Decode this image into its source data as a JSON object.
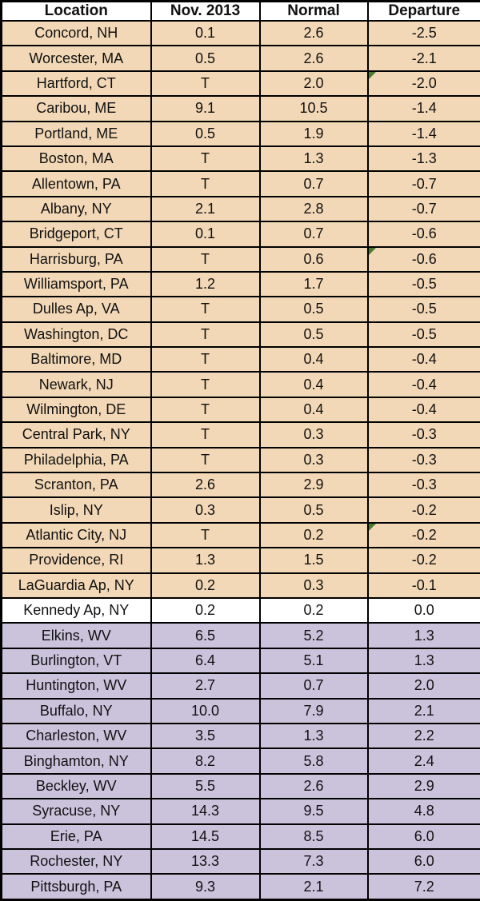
{
  "chart_data": {
    "type": "table",
    "columns": [
      "Location",
      "Nov. 2013",
      "Normal",
      "Departure"
    ],
    "rows": [
      {
        "location": "Concord, NH",
        "nov_2013": "0.1",
        "normal": "2.6",
        "departure": "-2.5",
        "category": "below_normal",
        "note_flag": false
      },
      {
        "location": "Worcester, MA",
        "nov_2013": "0.5",
        "normal": "2.6",
        "departure": "-2.1",
        "category": "below_normal",
        "note_flag": false
      },
      {
        "location": "Hartford, CT",
        "nov_2013": "T",
        "normal": "2.0",
        "departure": "-2.0",
        "category": "below_normal",
        "note_flag": true
      },
      {
        "location": "Caribou, ME",
        "nov_2013": "9.1",
        "normal": "10.5",
        "departure": "-1.4",
        "category": "below_normal",
        "note_flag": false
      },
      {
        "location": "Portland, ME",
        "nov_2013": "0.5",
        "normal": "1.9",
        "departure": "-1.4",
        "category": "below_normal",
        "note_flag": false
      },
      {
        "location": "Boston, MA",
        "nov_2013": "T",
        "normal": "1.3",
        "departure": "-1.3",
        "category": "below_normal",
        "note_flag": false
      },
      {
        "location": "Allentown, PA",
        "nov_2013": "T",
        "normal": "0.7",
        "departure": "-0.7",
        "category": "below_normal",
        "note_flag": false
      },
      {
        "location": "Albany, NY",
        "nov_2013": "2.1",
        "normal": "2.8",
        "departure": "-0.7",
        "category": "below_normal",
        "note_flag": false
      },
      {
        "location": "Bridgeport, CT",
        "nov_2013": "0.1",
        "normal": "0.7",
        "departure": "-0.6",
        "category": "below_normal",
        "note_flag": false
      },
      {
        "location": "Harrisburg, PA",
        "nov_2013": "T",
        "normal": "0.6",
        "departure": "-0.6",
        "category": "below_normal",
        "note_flag": true
      },
      {
        "location": "Williamsport, PA",
        "nov_2013": "1.2",
        "normal": "1.7",
        "departure": "-0.5",
        "category": "below_normal",
        "note_flag": false
      },
      {
        "location": "Dulles Ap, VA",
        "nov_2013": "T",
        "normal": "0.5",
        "departure": "-0.5",
        "category": "below_normal",
        "note_flag": false
      },
      {
        "location": "Washington, DC",
        "nov_2013": "T",
        "normal": "0.5",
        "departure": "-0.5",
        "category": "below_normal",
        "note_flag": false
      },
      {
        "location": "Baltimore, MD",
        "nov_2013": "T",
        "normal": "0.4",
        "departure": "-0.4",
        "category": "below_normal",
        "note_flag": false
      },
      {
        "location": "Newark, NJ",
        "nov_2013": "T",
        "normal": "0.4",
        "departure": "-0.4",
        "category": "below_normal",
        "note_flag": false
      },
      {
        "location": "Wilmington, DE",
        "nov_2013": "T",
        "normal": "0.4",
        "departure": "-0.4",
        "category": "below_normal",
        "note_flag": false
      },
      {
        "location": "Central Park, NY",
        "nov_2013": "T",
        "normal": "0.3",
        "departure": "-0.3",
        "category": "below_normal",
        "note_flag": false
      },
      {
        "location": "Philadelphia, PA",
        "nov_2013": "T",
        "normal": "0.3",
        "departure": "-0.3",
        "category": "below_normal",
        "note_flag": false
      },
      {
        "location": "Scranton, PA",
        "nov_2013": "2.6",
        "normal": "2.9",
        "departure": "-0.3",
        "category": "below_normal",
        "note_flag": false
      },
      {
        "location": "Islip, NY",
        "nov_2013": "0.3",
        "normal": "0.5",
        "departure": "-0.2",
        "category": "below_normal",
        "note_flag": false
      },
      {
        "location": "Atlantic City, NJ",
        "nov_2013": "T",
        "normal": "0.2",
        "departure": "-0.2",
        "category": "below_normal",
        "note_flag": true
      },
      {
        "location": "Providence, RI",
        "nov_2013": "1.3",
        "normal": "1.5",
        "departure": "-0.2",
        "category": "below_normal",
        "note_flag": false
      },
      {
        "location": "LaGuardia Ap, NY",
        "nov_2013": "0.2",
        "normal": "0.3",
        "departure": "-0.1",
        "category": "below_normal",
        "note_flag": false
      },
      {
        "location": "Kennedy Ap, NY",
        "nov_2013": "0.2",
        "normal": "0.2",
        "departure": "0.0",
        "category": "normal",
        "note_flag": false
      },
      {
        "location": "Elkins, WV",
        "nov_2013": "6.5",
        "normal": "5.2",
        "departure": "1.3",
        "category": "above_normal",
        "note_flag": false
      },
      {
        "location": "Burlington, VT",
        "nov_2013": "6.4",
        "normal": "5.1",
        "departure": "1.3",
        "category": "above_normal",
        "note_flag": false
      },
      {
        "location": "Huntington, WV",
        "nov_2013": "2.7",
        "normal": "0.7",
        "departure": "2.0",
        "category": "above_normal",
        "note_flag": false
      },
      {
        "location": "Buffalo, NY",
        "nov_2013": "10.0",
        "normal": "7.9",
        "departure": "2.1",
        "category": "above_normal",
        "note_flag": false
      },
      {
        "location": "Charleston, WV",
        "nov_2013": "3.5",
        "normal": "1.3",
        "departure": "2.2",
        "category": "above_normal",
        "note_flag": false
      },
      {
        "location": "Binghamton, NY",
        "nov_2013": "8.2",
        "normal": "5.8",
        "departure": "2.4",
        "category": "above_normal",
        "note_flag": false
      },
      {
        "location": "Beckley, WV",
        "nov_2013": "5.5",
        "normal": "2.6",
        "departure": "2.9",
        "category": "above_normal",
        "note_flag": false
      },
      {
        "location": "Syracuse, NY",
        "nov_2013": "14.3",
        "normal": "9.5",
        "departure": "4.8",
        "category": "above_normal",
        "note_flag": false
      },
      {
        "location": "Erie, PA",
        "nov_2013": "14.5",
        "normal": "8.5",
        "departure": "6.0",
        "category": "above_normal",
        "note_flag": false
      },
      {
        "location": "Rochester, NY",
        "nov_2013": "13.3",
        "normal": "7.3",
        "departure": "6.0",
        "category": "above_normal",
        "note_flag": false
      },
      {
        "location": "Pittsburgh, PA",
        "nov_2013": "9.3",
        "normal": "2.1",
        "departure": "7.2",
        "category": "above_normal",
        "note_flag": false
      }
    ]
  },
  "colors": {
    "below_normal_bg": "#f2d8b6",
    "normal_bg": "#ffffff",
    "above_normal_bg": "#cbc3dc",
    "header_bg": "#ffffff",
    "border": "#000000",
    "flag_green": "#4a7c2f",
    "text": "#111111"
  }
}
